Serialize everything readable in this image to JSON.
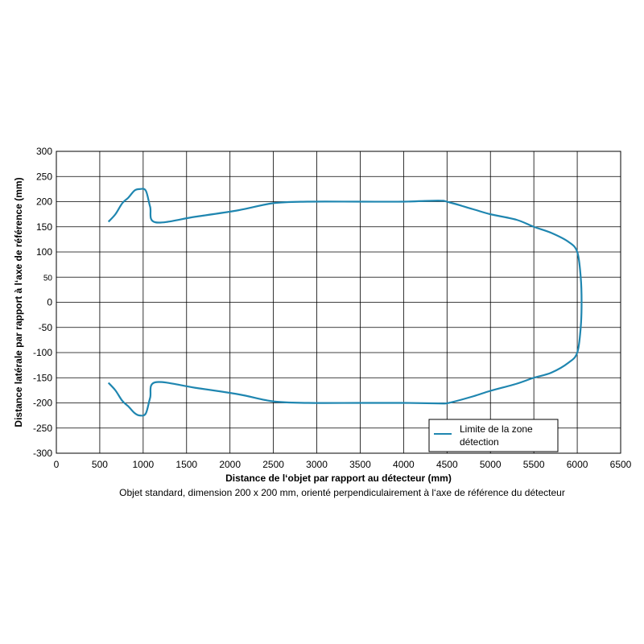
{
  "chart_data": {
    "type": "line",
    "xlabel": "Distance de l‘objet par rapport au détecteur (mm)",
    "ylabel": "Distance latérale par rapport à l‘axe de référence (mm)",
    "caption": "Objet standard, dimension 200 x 200 mm, orienté perpendiculairement à l‘axe de référence du détecteur",
    "xlim": [
      0,
      6500
    ],
    "ylim": [
      -300,
      300
    ],
    "x_ticks": [
      "0",
      "500",
      "1000",
      "1500",
      "2000",
      "2500",
      "3000",
      "3500",
      "4000",
      "4500",
      "5000",
      "5500",
      "6000",
      "6500"
    ],
    "y_ticks": [
      {
        "value": 300,
        "label": "300"
      },
      {
        "value": 250,
        "label": "250"
      },
      {
        "value": 200,
        "label": "200"
      },
      {
        "value": 150,
        "label": "150"
      },
      {
        "value": 100,
        "label": "100"
      },
      {
        "value": 50,
        "label": "50"
      },
      {
        "value": 0,
        "label": "0"
      },
      {
        "value": -50,
        "label": "-50"
      },
      {
        "value": -100,
        "label": "-100"
      },
      {
        "value": -150,
        "label": "-150"
      },
      {
        "value": -200,
        "label": "-200"
      },
      {
        "value": -250,
        "label": "-250"
      },
      {
        "value": -300,
        "label": "-300"
      }
    ],
    "grid": true,
    "legend_position": "bottom-right",
    "series": [
      {
        "name": "Limite de la zone détection",
        "legend_lines": [
          "Limite de la zone",
          "détection"
        ],
        "color": "#1f86b0",
        "points": [
          [
            600,
            160
          ],
          [
            680,
            175
          ],
          [
            760,
            197
          ],
          [
            830,
            208
          ],
          [
            900,
            222
          ],
          [
            960,
            225
          ],
          [
            1030,
            222
          ],
          [
            1080,
            190
          ],
          [
            1140,
            159
          ],
          [
            1600,
            170
          ],
          [
            2100,
            183
          ],
          [
            2500,
            197
          ],
          [
            2900,
            200
          ],
          [
            3500,
            200
          ],
          [
            4000,
            200
          ],
          [
            4400,
            202
          ],
          [
            4520,
            199
          ],
          [
            4800,
            185
          ],
          [
            5000,
            175
          ],
          [
            5300,
            164
          ],
          [
            5500,
            150
          ],
          [
            5700,
            138
          ],
          [
            5900,
            120
          ],
          [
            6000,
            100
          ],
          [
            6040,
            50
          ],
          [
            6050,
            0
          ],
          [
            6040,
            -50
          ],
          [
            6000,
            -100
          ],
          [
            5900,
            -120
          ],
          [
            5700,
            -140
          ],
          [
            5500,
            -150
          ],
          [
            5300,
            -162
          ],
          [
            5000,
            -176
          ],
          [
            4800,
            -187
          ],
          [
            4520,
            -200
          ],
          [
            4400,
            -201
          ],
          [
            4000,
            -200
          ],
          [
            3500,
            -200
          ],
          [
            2900,
            -200
          ],
          [
            2500,
            -197
          ],
          [
            2100,
            -183
          ],
          [
            1600,
            -170
          ],
          [
            1140,
            -159
          ],
          [
            1080,
            -190
          ],
          [
            1030,
            -221
          ],
          [
            960,
            -225
          ],
          [
            900,
            -220
          ],
          [
            830,
            -207
          ],
          [
            760,
            -196
          ],
          [
            680,
            -175
          ],
          [
            600,
            -160
          ]
        ]
      }
    ]
  }
}
